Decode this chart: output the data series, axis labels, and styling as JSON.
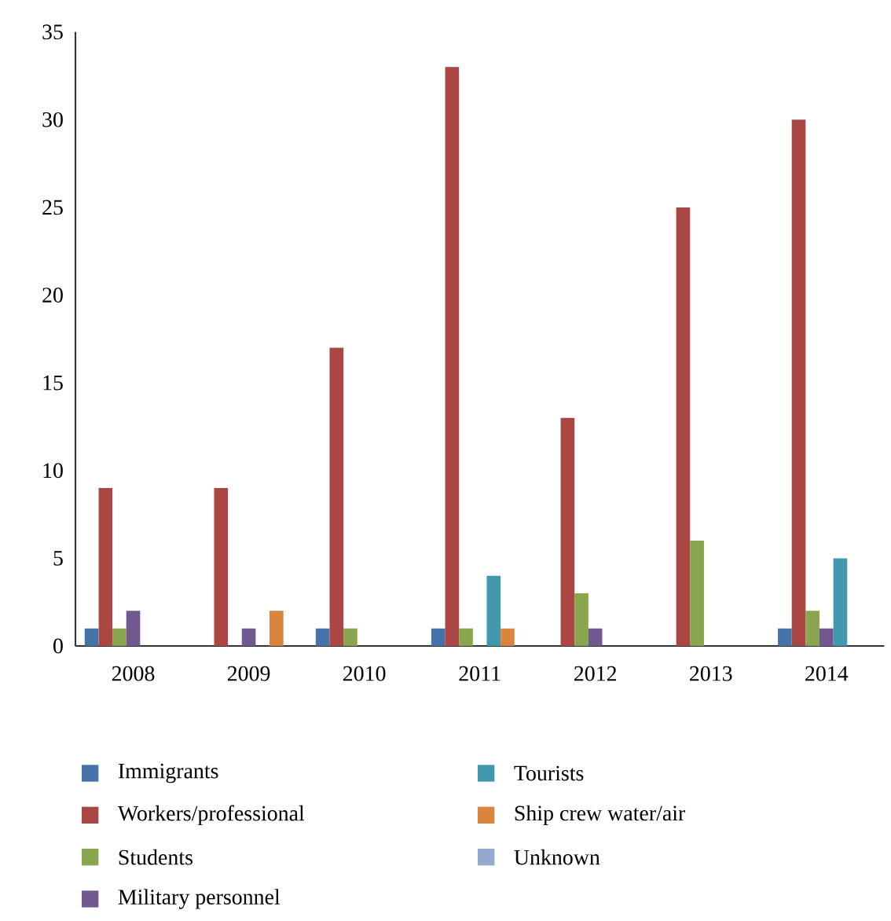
{
  "chart_data": {
    "type": "bar",
    "categories": [
      "2008",
      "2009",
      "2010",
      "2011",
      "2012",
      "2013",
      "2014"
    ],
    "series": [
      {
        "name": "Immigrants",
        "color": "#4573a7",
        "values": [
          1,
          0,
          1,
          1,
          0,
          0,
          1
        ]
      },
      {
        "name": "Workers/professional",
        "color": "#aa4643",
        "values": [
          9,
          9,
          17,
          33,
          13,
          25,
          30
        ]
      },
      {
        "name": "Students",
        "color": "#89a54e",
        "values": [
          1,
          0,
          1,
          1,
          3,
          6,
          2
        ]
      },
      {
        "name": "Military personnel",
        "color": "#71588f",
        "values": [
          2,
          1,
          0,
          0,
          1,
          0,
          1
        ]
      },
      {
        "name": "Tourists",
        "color": "#4198af",
        "values": [
          0,
          0,
          0,
          4,
          0,
          0,
          5
        ]
      },
      {
        "name": "Ship crew water/air",
        "color": "#db843d",
        "values": [
          0,
          2,
          0,
          1,
          0,
          0,
          0
        ]
      },
      {
        "name": "Unknown",
        "color": "#93a9cf",
        "values": [
          0,
          0,
          0,
          0,
          0,
          0,
          0
        ]
      }
    ],
    "ylim": [
      0,
      35
    ],
    "yticks": [
      0,
      5,
      10,
      15,
      20,
      25,
      30,
      35
    ],
    "legend": "bottom"
  }
}
